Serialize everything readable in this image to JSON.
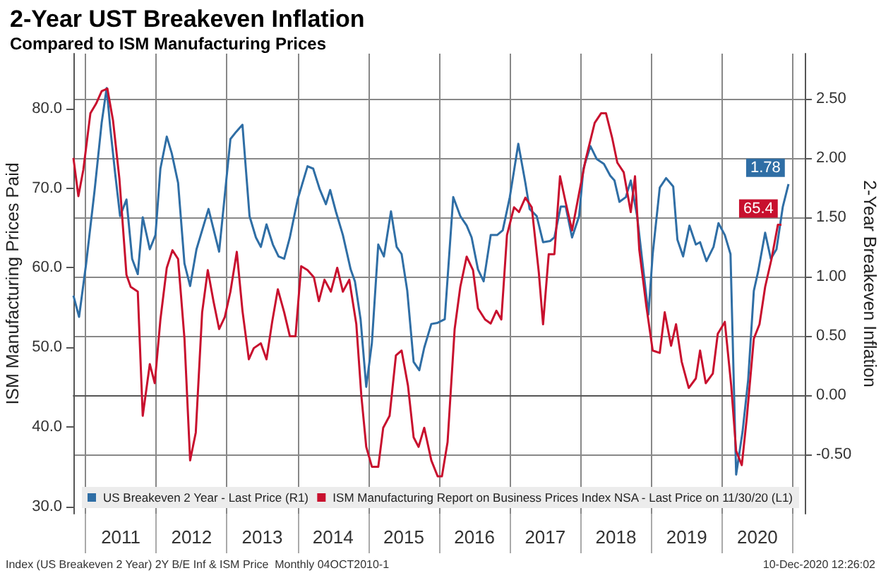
{
  "chart_data": {
    "type": "line",
    "title": "2-Year UST Breakeven Inflation",
    "subtitle": "Compared to ISM Manufacturing Prices",
    "ylabel": "ISM Manufacturing Prices Paid",
    "y2label": "2-Year Breakeven Inflation",
    "annotations": [
      "Index (US Breakeven 2 Year) 2Y B/E Inf & ISM Price  Monthly 04OCT2010-1",
      "10-Dec-2020 12:26:02"
    ],
    "xlim": [
      2010.83,
      2021.17
    ],
    "xticks": [
      {
        "value": 2011,
        "label": null
      },
      {
        "value": 2011.5,
        "label": "2011"
      },
      {
        "value": 2012,
        "label": null
      },
      {
        "value": 2012.5,
        "label": "2012"
      },
      {
        "value": 2013,
        "label": null
      },
      {
        "value": 2013.5,
        "label": "2013"
      },
      {
        "value": 2014,
        "label": null
      },
      {
        "value": 2014.5,
        "label": "2014"
      },
      {
        "value": 2015,
        "label": null
      },
      {
        "value": 2015.5,
        "label": "2015"
      },
      {
        "value": 2016,
        "label": null
      },
      {
        "value": 2016.5,
        "label": "2016"
      },
      {
        "value": 2017,
        "label": null
      },
      {
        "value": 2017.5,
        "label": "2017"
      },
      {
        "value": 2018,
        "label": null
      },
      {
        "value": 2018.5,
        "label": "2018"
      },
      {
        "value": 2019,
        "label": null
      },
      {
        "value": 2019.5,
        "label": "2019"
      },
      {
        "value": 2020,
        "label": null
      },
      {
        "value": 2020.5,
        "label": "2020"
      },
      {
        "value": 2021,
        "label": null
      }
    ],
    "ylim": [
      29.1,
      86.9
    ],
    "yticks": [
      {
        "value": 30,
        "label": "30.0"
      },
      {
        "value": 40,
        "label": "40.0"
      },
      {
        "value": 50,
        "label": "50.0"
      },
      {
        "value": 60,
        "label": "60.0"
      },
      {
        "value": 70,
        "label": "70.0"
      },
      {
        "value": 80,
        "label": "80.0"
      }
    ],
    "y2lim": [
      -1.0,
      2.88
    ],
    "y2ticks": [
      {
        "value": -0.5,
        "label": "-0.50"
      },
      {
        "value": 0,
        "label": "0.00"
      },
      {
        "value": 0.5,
        "label": "0.50"
      },
      {
        "value": 1,
        "label": "1.00"
      },
      {
        "value": 1.5,
        "label": "1.50"
      },
      {
        "value": 2,
        "label": "2.00"
      },
      {
        "value": 2.5,
        "label": "2.50"
      }
    ],
    "grid": true,
    "legend": "bottom",
    "series": [
      {
        "name": "US Breakeven 2 Year - Last Price (R1)",
        "color": "#2f6ea5",
        "axis": "y2",
        "x": [
          2010.83,
          2010.91,
          2011.01,
          2011.13,
          2011.23,
          2011.3,
          2011.35,
          2011.42,
          2011.49,
          2011.58,
          2011.66,
          2011.74,
          2011.81,
          2011.91,
          2011.99,
          2012.06,
          2012.15,
          2012.22,
          2012.31,
          2012.4,
          2012.48,
          2012.57,
          2012.74,
          2012.89,
          2013.05,
          2013.13,
          2013.22,
          2013.32,
          2013.41,
          2013.48,
          2013.56,
          2013.65,
          2013.73,
          2013.81,
          2013.89,
          2014.0,
          2014.14,
          2014.22,
          2014.31,
          2014.4,
          2014.46,
          2014.54,
          2014.64,
          2014.75,
          2014.81,
          2014.89,
          2014.97,
          2015.05,
          2015.14,
          2015.22,
          2015.32,
          2015.4,
          2015.47,
          2015.55,
          2015.64,
          2015.72,
          2015.79,
          2015.89,
          2015.98,
          2016.08,
          2016.2,
          2016.3,
          2016.39,
          2016.46,
          2016.55,
          2016.63,
          2016.73,
          2016.82,
          2016.9,
          2017.0,
          2017.12,
          2017.22,
          2017.28,
          2017.38,
          2017.47,
          2017.57,
          2017.63,
          2017.72,
          2017.79,
          2017.88,
          2017.98,
          2018.04,
          2018.14,
          2018.23,
          2018.33,
          2018.42,
          2018.48,
          2018.55,
          2018.64,
          2018.71,
          2018.8,
          2018.96,
          2019.02,
          2019.12,
          2019.21,
          2019.31,
          2019.37,
          2019.45,
          2019.54,
          2019.63,
          2019.69,
          2019.78,
          2019.88,
          2019.95,
          2020.04,
          2020.12,
          2020.2,
          2020.29,
          2020.37,
          2020.45,
          2020.51,
          2020.61,
          2020.69,
          2020.77,
          2020.86,
          2020.94
        ],
        "values": [
          0.84,
          0.66,
          1.11,
          1.73,
          2.3,
          2.59,
          2.26,
          1.87,
          1.51,
          1.65,
          1.15,
          1.02,
          1.5,
          1.23,
          1.35,
          1.91,
          2.18,
          2.04,
          1.79,
          1.11,
          0.92,
          1.23,
          1.57,
          1.21,
          2.16,
          2.22,
          2.28,
          1.51,
          1.33,
          1.25,
          1.44,
          1.27,
          1.17,
          1.15,
          1.33,
          1.65,
          1.93,
          1.91,
          1.74,
          1.61,
          1.73,
          1.55,
          1.35,
          1.06,
          0.96,
          0.64,
          0.07,
          0.44,
          1.27,
          1.17,
          1.55,
          1.25,
          1.19,
          0.88,
          0.28,
          0.21,
          0.4,
          0.6,
          0.61,
          0.64,
          1.67,
          1.51,
          1.43,
          1.33,
          1.06,
          0.96,
          1.35,
          1.35,
          1.39,
          1.67,
          2.12,
          1.79,
          1.57,
          1.51,
          1.29,
          1.3,
          1.33,
          1.59,
          1.59,
          1.33,
          1.51,
          1.91,
          2.1,
          1.99,
          1.95,
          1.85,
          1.81,
          1.63,
          1.67,
          1.81,
          1.51,
          0.68,
          1.19,
          1.75,
          1.83,
          1.76,
          1.31,
          1.17,
          1.43,
          1.27,
          1.29,
          1.13,
          1.25,
          1.45,
          1.35,
          1.19,
          -0.67,
          -0.31,
          0.13,
          0.88,
          1.04,
          1.37,
          1.15,
          1.23,
          1.59,
          1.78
        ],
        "value_labels": [
          null,
          null,
          null,
          null,
          null,
          null,
          null,
          null,
          null,
          null,
          null,
          null,
          null,
          null,
          null,
          null,
          null,
          null,
          null,
          null,
          null,
          null,
          null,
          null,
          null,
          null,
          null,
          null,
          null,
          null,
          null,
          null,
          null,
          null,
          null,
          null,
          null,
          null,
          null,
          null,
          null,
          null,
          null,
          null,
          null,
          null,
          null,
          null,
          null,
          null,
          null,
          null,
          null,
          null,
          null,
          null,
          null,
          null,
          null,
          null,
          null,
          null,
          null,
          null,
          null,
          null,
          null,
          null,
          null,
          null,
          null,
          null,
          null,
          null,
          null,
          null,
          null,
          null,
          null,
          null,
          null,
          null,
          null,
          null,
          null,
          null,
          null,
          null,
          null,
          null,
          null,
          null,
          null,
          null,
          null,
          null,
          null,
          null,
          null,
          null,
          null,
          null,
          null,
          null,
          null,
          null,
          null,
          null,
          null,
          null,
          null,
          null,
          null,
          null,
          null,
          "1.78"
        ]
      },
      {
        "name": "ISM Manufacturing Report on Business Prices Index NSA - Last Price on 11/30/20 (L1)",
        "color": "#c8102e",
        "axis": "y",
        "x": [
          2010.83,
          2010.9,
          2010.97,
          2011.07,
          2011.15,
          2011.23,
          2011.31,
          2011.39,
          2011.48,
          2011.58,
          2011.64,
          2011.74,
          2011.81,
          2011.91,
          2011.98,
          2012.06,
          2012.15,
          2012.23,
          2012.31,
          2012.4,
          2012.48,
          2012.56,
          2012.65,
          2012.73,
          2012.81,
          2012.89,
          2012.97,
          2013.05,
          2013.14,
          2013.22,
          2013.31,
          2013.38,
          2013.48,
          2013.56,
          2013.64,
          2013.72,
          2013.81,
          2013.89,
          2013.97,
          2014.05,
          2014.14,
          2014.23,
          2014.3,
          2014.38,
          2014.47,
          2014.56,
          2014.64,
          2014.73,
          2014.83,
          2014.9,
          2014.97,
          2015.05,
          2015.14,
          2015.21,
          2015.3,
          2015.39,
          2015.47,
          2015.56,
          2015.64,
          2015.71,
          2015.79,
          2015.89,
          2015.98,
          2016.04,
          2016.12,
          2016.22,
          2016.3,
          2016.39,
          2016.48,
          2016.55,
          2016.65,
          2016.73,
          2016.81,
          2016.88,
          2016.96,
          2017.06,
          2017.13,
          2017.22,
          2017.31,
          2017.41,
          2017.47,
          2017.55,
          2017.63,
          2017.71,
          2017.79,
          2017.88,
          2017.98,
          2018.07,
          2018.2,
          2018.29,
          2018.36,
          2018.45,
          2018.52,
          2018.61,
          2018.71,
          2018.77,
          2018.83,
          2018.93,
          2019.02,
          2019.12,
          2019.19,
          2019.28,
          2019.35,
          2019.43,
          2019.53,
          2019.63,
          2019.69,
          2019.77,
          2019.87,
          2019.94,
          2020.04,
          2020.13,
          2020.2,
          2020.28,
          2020.35,
          2020.45,
          2020.53,
          2020.61,
          2020.7,
          2020.79,
          2020.84
        ],
        "values": [
          73.8,
          69.0,
          72.3,
          79.4,
          80.6,
          82.2,
          82.5,
          78.5,
          71.2,
          59.1,
          57.6,
          57.0,
          41.4,
          47.9,
          45.5,
          53.5,
          60.0,
          62.2,
          61.1,
          51.1,
          35.8,
          39.3,
          54.4,
          59.7,
          55.8,
          52.3,
          53.8,
          57.0,
          62.0,
          54.6,
          48.5,
          49.9,
          50.5,
          48.5,
          53.2,
          57.3,
          54.4,
          51.4,
          51.4,
          60.2,
          59.7,
          58.8,
          55.8,
          58.5,
          57.0,
          60.0,
          57.0,
          58.5,
          52.9,
          44.0,
          37.5,
          35.0,
          35.0,
          39.9,
          41.4,
          49.0,
          49.6,
          45.2,
          38.7,
          37.5,
          39.9,
          35.8,
          33.8,
          33.8,
          38.1,
          52.3,
          57.6,
          61.4,
          59.7,
          54.9,
          53.5,
          53.0,
          54.6,
          53.5,
          64.1,
          67.6,
          67.0,
          68.8,
          67.6,
          59.4,
          52.9,
          61.7,
          61.7,
          71.5,
          68.2,
          64.7,
          69.4,
          73.5,
          78.2,
          79.4,
          79.4,
          76.2,
          73.2,
          72.0,
          67.0,
          71.5,
          62.3,
          55.2,
          49.6,
          49.3,
          54.4,
          50.2,
          52.9,
          48.2,
          44.9,
          46.1,
          49.6,
          45.5,
          46.7,
          51.7,
          53.2,
          45.2,
          37.0,
          35.2,
          41.1,
          51.1,
          52.9,
          57.6,
          61.1,
          65.4,
          65.4
        ],
        "value_labels": [
          null,
          null,
          null,
          null,
          null,
          null,
          null,
          null,
          null,
          null,
          null,
          null,
          null,
          null,
          null,
          null,
          null,
          null,
          null,
          null,
          null,
          null,
          null,
          null,
          null,
          null,
          null,
          null,
          null,
          null,
          null,
          null,
          null,
          null,
          null,
          null,
          null,
          null,
          null,
          null,
          null,
          null,
          null,
          null,
          null,
          null,
          null,
          null,
          null,
          null,
          null,
          null,
          null,
          null,
          null,
          null,
          null,
          null,
          null,
          null,
          null,
          null,
          null,
          null,
          null,
          null,
          null,
          null,
          null,
          null,
          null,
          null,
          null,
          null,
          null,
          null,
          null,
          null,
          null,
          null,
          null,
          null,
          null,
          null,
          null,
          null,
          null,
          null,
          null,
          null,
          null,
          null,
          null,
          null,
          null,
          null,
          null,
          null,
          null,
          null,
          null,
          null,
          null,
          null,
          null,
          null,
          null,
          null,
          null,
          null,
          null,
          null,
          null,
          null,
          null,
          null,
          null,
          null,
          null,
          null,
          "65.4"
        ]
      }
    ]
  }
}
